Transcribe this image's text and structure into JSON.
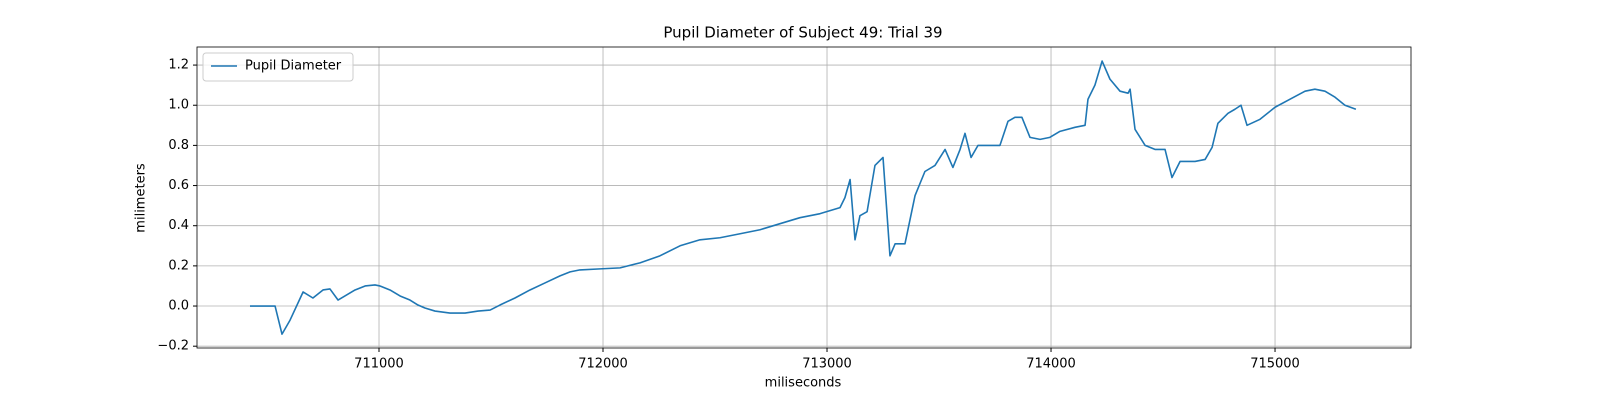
{
  "chart_data": {
    "type": "line",
    "title": "Pupil Diameter of Subject 49: Trial 39",
    "xlabel": "miliseconds",
    "ylabel": "milimeters",
    "x": [
      710424,
      710536,
      710567,
      710603,
      710661,
      710705,
      710750,
      710781,
      710817,
      710848,
      710893,
      710938,
      710982,
      711004,
      711049,
      711094,
      711138,
      711174,
      711205,
      711250,
      711317,
      711384,
      711442,
      711496,
      711540,
      711607,
      711674,
      711741,
      711808,
      711853,
      711897,
      711987,
      712076,
      712165,
      712254,
      712344,
      712433,
      712522,
      712612,
      712701,
      712790,
      712879,
      712969,
      713058,
      713080,
      713103,
      713125,
      713147,
      713179,
      713214,
      713250,
      713281,
      713304,
      713348,
      713393,
      713437,
      713482,
      713527,
      713562,
      713594,
      713616,
      713643,
      713674,
      713772,
      713808,
      713839,
      713870,
      713906,
      713951,
      713995,
      714040,
      714107,
      714152,
      714165,
      714196,
      714228,
      714263,
      714308,
      714344,
      714353,
      714375,
      714420,
      714464,
      714509,
      714540,
      714576,
      714643,
      714688,
      714719,
      714745,
      714790,
      714821,
      714848,
      714875,
      714933,
      715000,
      715067,
      715134,
      715178,
      715223,
      715268,
      715312,
      715361
    ],
    "series": [
      {
        "name": "Pupil Diameter",
        "color": "#1f77b4",
        "values": [
          0,
          0,
          -0.14,
          -0.07,
          0.07,
          0.04,
          0.08,
          0.085,
          0.03,
          0.05,
          0.08,
          0.1,
          0.105,
          0.1,
          0.08,
          0.05,
          0.03,
          0.005,
          -0.01,
          -0.025,
          -0.035,
          -0.035,
          -0.025,
          -0.02,
          0.005,
          0.04,
          0.08,
          0.115,
          0.15,
          0.17,
          0.18,
          0.185,
          0.19,
          0.215,
          0.25,
          0.3,
          0.33,
          0.34,
          0.36,
          0.38,
          0.41,
          0.44,
          0.46,
          0.49,
          0.54,
          0.63,
          0.33,
          0.45,
          0.47,
          0.7,
          0.74,
          0.25,
          0.31,
          0.31,
          0.55,
          0.67,
          0.7,
          0.78,
          0.69,
          0.78,
          0.86,
          0.74,
          0.8,
          0.8,
          0.92,
          0.94,
          0.94,
          0.84,
          0.83,
          0.84,
          0.87,
          0.89,
          0.9,
          1.03,
          1.1,
          1.22,
          1.13,
          1.07,
          1.06,
          1.08,
          0.88,
          0.8,
          0.78,
          0.78,
          0.64,
          0.72,
          0.72,
          0.73,
          0.79,
          0.91,
          0.96,
          0.98,
          1.0,
          0.9,
          0.93,
          0.99,
          1.03,
          1.07,
          1.08,
          1.07,
          1.04,
          1.0,
          0.98
        ]
      }
    ],
    "xlim": [
      710187.5,
      715607
    ],
    "xticks": [
      711000,
      712000,
      713000,
      714000,
      715000
    ],
    "ylim": [
      -0.209,
      1.29
    ],
    "yticks": [
      {
        "value": -0.2,
        "label": "−0.2"
      },
      {
        "value": 0,
        "label": "0.0"
      },
      0.2,
      0.4,
      0.6,
      0.8,
      {
        "value": 1,
        "label": "1.0"
      },
      1.2
    ],
    "grid": true,
    "legend": "upper left"
  }
}
